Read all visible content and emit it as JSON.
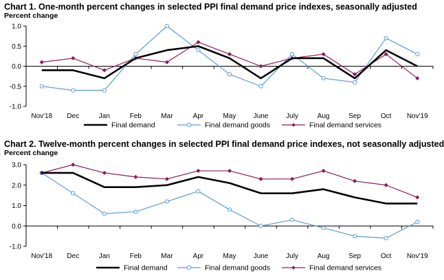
{
  "colors": {
    "final_demand": "#000000",
    "final_demand_goods": "#5b9bd5",
    "final_demand_services": "#8b1a5a"
  },
  "chart_data": [
    {
      "type": "line",
      "title": "Chart 1. One-month percent changes in selected PPI final demand price indexes, seasonally adjusted",
      "ylabel": "Percent change",
      "xlabel": "",
      "categories": [
        "Nov'18",
        "Dec",
        "Jan",
        "Feb",
        "Mar",
        "Apr",
        "May",
        "June",
        "July",
        "Aug",
        "Sep",
        "Oct",
        "Nov'19"
      ],
      "ylim": [
        -1.0,
        1.0
      ],
      "yticks": [
        "1.0",
        "0.5",
        "0.0",
        "-0.5",
        "-1.0"
      ],
      "legend": "bottom",
      "grid": false,
      "series": [
        {
          "name": "Final demand",
          "values": [
            -0.1,
            -0.1,
            -0.3,
            0.2,
            0.4,
            0.5,
            0.2,
            -0.3,
            0.2,
            0.2,
            -0.3,
            0.4,
            0.0
          ]
        },
        {
          "name": "Final demand goods",
          "values": [
            -0.5,
            -0.6,
            -0.6,
            0.3,
            1.0,
            0.4,
            -0.2,
            -0.5,
            0.3,
            -0.3,
            -0.4,
            0.7,
            0.3
          ]
        },
        {
          "name": "Final demand services",
          "values": [
            0.1,
            0.2,
            -0.1,
            0.2,
            0.1,
            0.6,
            0.3,
            0.0,
            0.2,
            0.3,
            -0.2,
            0.3,
            -0.3
          ]
        }
      ]
    },
    {
      "type": "line",
      "title": "Chart 2. Twelve-month percent changes in selected PPI final demand price indexes, not seasonally adjusted",
      "ylabel": "Percent change",
      "xlabel": "",
      "categories": [
        "Nov'18",
        "Dec",
        "Jan",
        "Feb",
        "Mar",
        "Apr",
        "May",
        "June",
        "July",
        "Aug",
        "Sep",
        "Oct",
        "Nov'19"
      ],
      "ylim": [
        -1.0,
        3.0
      ],
      "yticks": [
        "3.0",
        "2.0",
        "1.0",
        "0.0",
        "-1.0"
      ],
      "legend": "bottom",
      "grid": false,
      "series": [
        {
          "name": "Final demand",
          "values": [
            2.6,
            2.6,
            1.9,
            1.9,
            2.0,
            2.4,
            2.1,
            1.6,
            1.6,
            1.8,
            1.4,
            1.1,
            1.1
          ]
        },
        {
          "name": "Final demand goods",
          "values": [
            2.6,
            1.6,
            0.6,
            0.7,
            1.2,
            1.7,
            0.8,
            0.0,
            0.3,
            -0.1,
            -0.5,
            -0.6,
            0.2
          ]
        },
        {
          "name": "Final demand services",
          "values": [
            2.6,
            3.0,
            2.6,
            2.4,
            2.3,
            2.7,
            2.7,
            2.3,
            2.3,
            2.7,
            2.2,
            2.0,
            1.4
          ]
        }
      ]
    }
  ]
}
